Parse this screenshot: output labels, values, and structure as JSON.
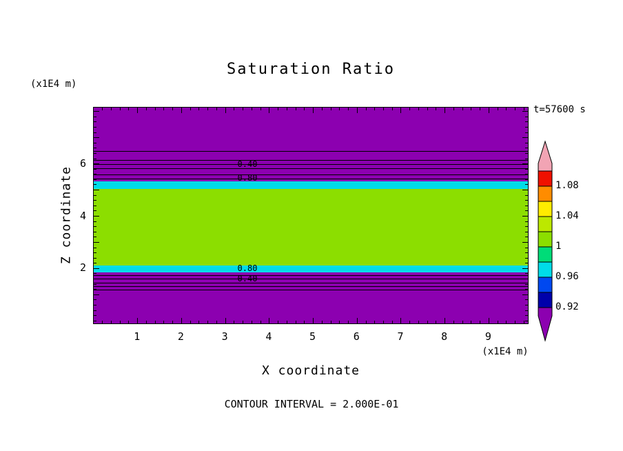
{
  "title": "Saturation Ratio",
  "annotations": {
    "time": "t=57600 s",
    "contour_interval": "CONTOUR INTERVAL = 2.000E-01",
    "y_axis_unit": "(x1E4 m)",
    "x_axis_unit": "(x1E4 m)"
  },
  "axes": {
    "x_label": "X coordinate",
    "y_label": "Z coordinate"
  },
  "chart_data": {
    "type": "heatmap",
    "title": "Saturation Ratio",
    "xlabel": "X coordinate",
    "ylabel": "Z coordinate",
    "x_unit": "(x1E4 m)",
    "y_unit": "(x1E4 m)",
    "time_annotation": "t=57600 s",
    "contour_interval": 0.2,
    "xlim": [
      0,
      9.92
    ],
    "ylim": [
      -0.15,
      8.15
    ],
    "x_major_ticks": [
      1,
      2,
      3,
      4,
      5,
      6,
      7,
      8,
      9
    ],
    "x_minor_step": 0.2,
    "y_major_ticks": [
      1,
      2,
      3,
      4,
      5,
      6,
      7,
      8
    ],
    "y_minor_step": 0.2,
    "y_labeled_ticks": [
      2,
      4,
      6
    ],
    "grid": false,
    "bands": [
      {
        "z_from": -0.15,
        "z_to": 1.85,
        "color": "#8C00B0"
      },
      {
        "z_from": 1.85,
        "z_to": 2.12,
        "color": "#00DCE8"
      },
      {
        "z_from": 2.12,
        "z_to": 5.05,
        "color": "#8CDE00"
      },
      {
        "z_from": 5.05,
        "z_to": 5.33,
        "color": "#00DCE8"
      },
      {
        "z_from": 5.33,
        "z_to": 8.15,
        "color": "#8C00B0"
      }
    ],
    "contour_lines_z": [
      6.49,
      6.15,
      5.99,
      5.83,
      5.59,
      5.44,
      1.75,
      1.62,
      1.46,
      1.33,
      1.2
    ],
    "contour_labels": [
      {
        "text": "0.40",
        "x": 3.5,
        "z": 5.98
      },
      {
        "text": "0.80",
        "x": 3.5,
        "z": 5.45
      },
      {
        "text": "0.80",
        "x": 3.5,
        "z": 2.0
      },
      {
        "text": "0.40",
        "x": 3.5,
        "z": 1.62
      }
    ],
    "colorbar": {
      "top_value": 1.1,
      "step_value": 0.02,
      "labels": [
        {
          "text": "1.08",
          "value": 1.08
        },
        {
          "text": "1.04",
          "value": 1.04
        },
        {
          "text": "1",
          "value": 1.0
        },
        {
          "text": "0.96",
          "value": 0.96
        },
        {
          "text": "0.92",
          "value": 0.92
        }
      ],
      "segments": [
        {
          "value_from": 1.1,
          "color": "#F2A4B4",
          "shape": "arrow-up"
        },
        {
          "value_from": 1.08,
          "value_to": 1.1,
          "color": "#F01000"
        },
        {
          "value_from": 1.06,
          "value_to": 1.08,
          "color": "#FF8C00"
        },
        {
          "value_from": 1.04,
          "value_to": 1.06,
          "color": "#FFEB00"
        },
        {
          "value_from": 1.02,
          "value_to": 1.04,
          "color": "#BCE800"
        },
        {
          "value_from": 1.0,
          "value_to": 1.02,
          "color": "#8CDE00"
        },
        {
          "value_from": 0.98,
          "value_to": 1.0,
          "color": "#00DC78"
        },
        {
          "value_from": 0.96,
          "value_to": 0.98,
          "color": "#00DCE8"
        },
        {
          "value_from": 0.94,
          "value_to": 0.96,
          "color": "#0048F0"
        },
        {
          "value_from": 0.92,
          "value_to": 0.94,
          "color": "#0000AA"
        },
        {
          "value_to": 0.92,
          "color": "#8C00B0",
          "shape": "arrow-down"
        }
      ]
    }
  }
}
